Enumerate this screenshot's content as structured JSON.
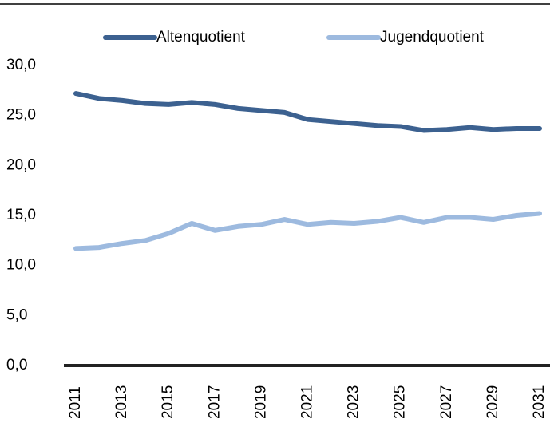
{
  "chart_data": {
    "type": "line",
    "categories": [
      "2011",
      null,
      "2013",
      null,
      "2015",
      null,
      "2017",
      null,
      "2019",
      null,
      "2021",
      null,
      "2023",
      null,
      "2025",
      null,
      "2027",
      null,
      "2029",
      null,
      "2031"
    ],
    "series": [
      {
        "name": "Altenquotient",
        "color": "#3c6190",
        "values": [
          27.2,
          26.7,
          26.5,
          26.2,
          26.1,
          26.3,
          26.1,
          25.7,
          25.5,
          25.3,
          24.6,
          24.4,
          24.2,
          24.0,
          23.9,
          23.5,
          23.6,
          23.8,
          23.6,
          23.7,
          23.7
        ]
      },
      {
        "name": "Jugendquotient",
        "color": "#9dbadf",
        "values": [
          11.7,
          11.8,
          12.2,
          12.5,
          13.2,
          14.2,
          13.5,
          13.9,
          14.1,
          14.6,
          14.1,
          14.3,
          14.2,
          14.4,
          14.8,
          14.3,
          14.8,
          14.8,
          14.6,
          15.0,
          15.2
        ]
      }
    ],
    "ylim": [
      0,
      30
    ],
    "yticks": [
      {
        "value": 0,
        "label": "0,0"
      },
      {
        "value": 5,
        "label": "5,0"
      },
      {
        "value": 10,
        "label": "10,0"
      },
      {
        "value": 15,
        "label": "15,0"
      },
      {
        "value": 20,
        "label": "20,0"
      },
      {
        "value": 25,
        "label": "25,0"
      },
      {
        "value": 30,
        "label": "30,0"
      }
    ],
    "legend": "top"
  }
}
